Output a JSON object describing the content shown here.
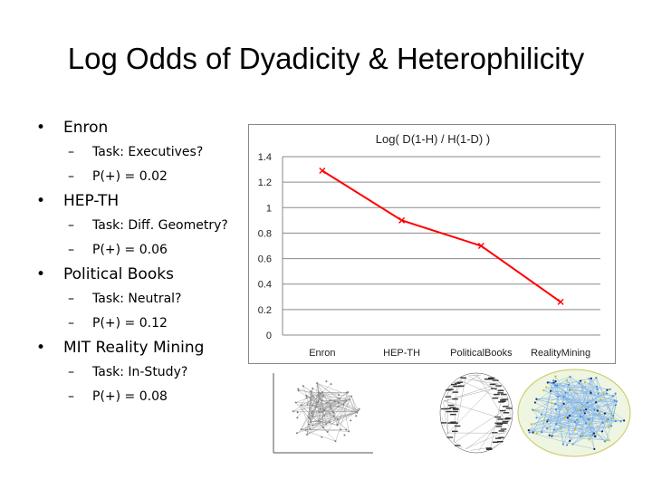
{
  "slide": {
    "title": "Log Odds of Dyadicity & Heterophilicity"
  },
  "bullets": [
    {
      "label": "Enron",
      "sub": [
        "Task: Executives?",
        "P(+) = 0.02"
      ]
    },
    {
      "label": "HEP-TH",
      "sub": [
        "Task: Diff. Geometry?",
        "P(+) = 0.06"
      ]
    },
    {
      "label": "Political Books",
      "sub": [
        "Task: Neutral?",
        "P(+) = 0.12"
      ]
    },
    {
      "label": "MIT Reality Mining",
      "sub": [
        "Task: In-Study?",
        "P(+) = 0.08"
      ]
    }
  ],
  "bullet_marker": "•",
  "sub_marker": "–",
  "chart_data": {
    "type": "line",
    "title": "Log( D(1-H) / H(1-D) )",
    "categories": [
      "Enron",
      "HEP-TH",
      "PoliticalBooks",
      "RealityMining"
    ],
    "values": [
      1.29,
      0.9,
      0.7,
      0.26
    ],
    "ylim": [
      0,
      1.4
    ],
    "yticks": [
      "0",
      "0.2",
      "0.4",
      "0.6",
      "0.8",
      "1",
      "1.2",
      "1.4"
    ],
    "grid": true,
    "marker": "x",
    "color": "#ff0000"
  },
  "thumbnails": [
    "enron-network-graph",
    "political-books-network-graph",
    "reality-mining-network-graph"
  ]
}
